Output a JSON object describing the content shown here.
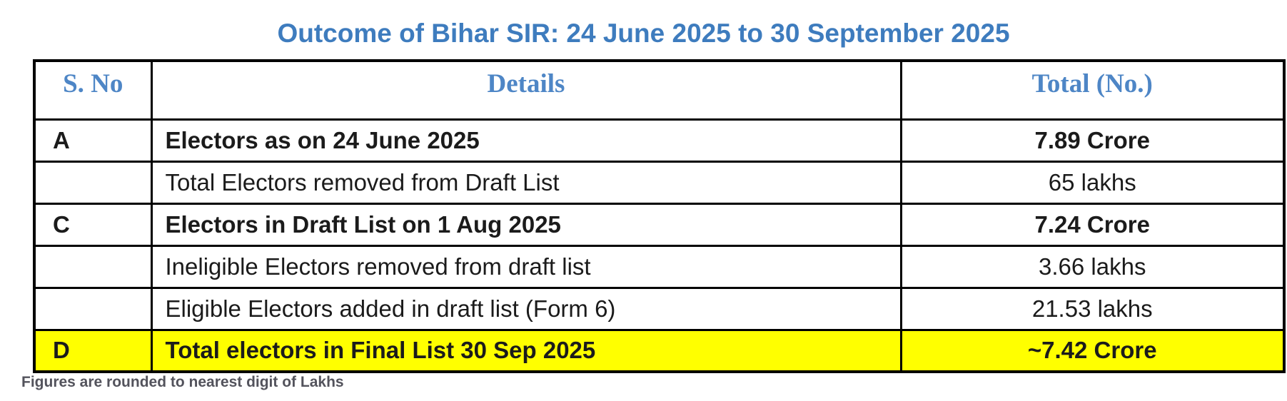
{
  "title": "Outcome of Bihar SIR: 24 June 2025 to 30 September 2025",
  "colors": {
    "title_blue": "#3e7cbe",
    "header_blue": "#4e86c6",
    "highlight_yellow": "#ffff00",
    "border_black": "#000000",
    "body_text": "#1b1b1b"
  },
  "table": {
    "headers": {
      "sno": "S. No",
      "details": "Details",
      "total": "Total (No.)"
    },
    "rows": [
      {
        "sno": "A",
        "details": "Electors as on 24 June 2025",
        "total": "7.89 Crore",
        "emphasis": "bold",
        "highlight": false
      },
      {
        "sno": "",
        "details": "Total Electors removed from Draft List",
        "total": "65 lakhs",
        "emphasis": "regular",
        "highlight": false
      },
      {
        "sno": "C",
        "details": "Electors in Draft List on 1 Aug 2025",
        "total": "7.24 Crore",
        "emphasis": "bold",
        "highlight": false
      },
      {
        "sno": "",
        "details": "Ineligible Electors removed from draft list",
        "total": "3.66 lakhs",
        "emphasis": "regular",
        "highlight": false
      },
      {
        "sno": "",
        "details": "Eligible Electors added in draft list (Form 6)",
        "total": "21.53 lakhs",
        "emphasis": "regular",
        "highlight": false
      },
      {
        "sno": "D",
        "details": "Total electors in Final List 30 Sep 2025",
        "total": "~7.42 Crore",
        "emphasis": "bold",
        "highlight": true
      }
    ]
  },
  "footnote": "Figures are rounded to nearest digit of Lakhs"
}
